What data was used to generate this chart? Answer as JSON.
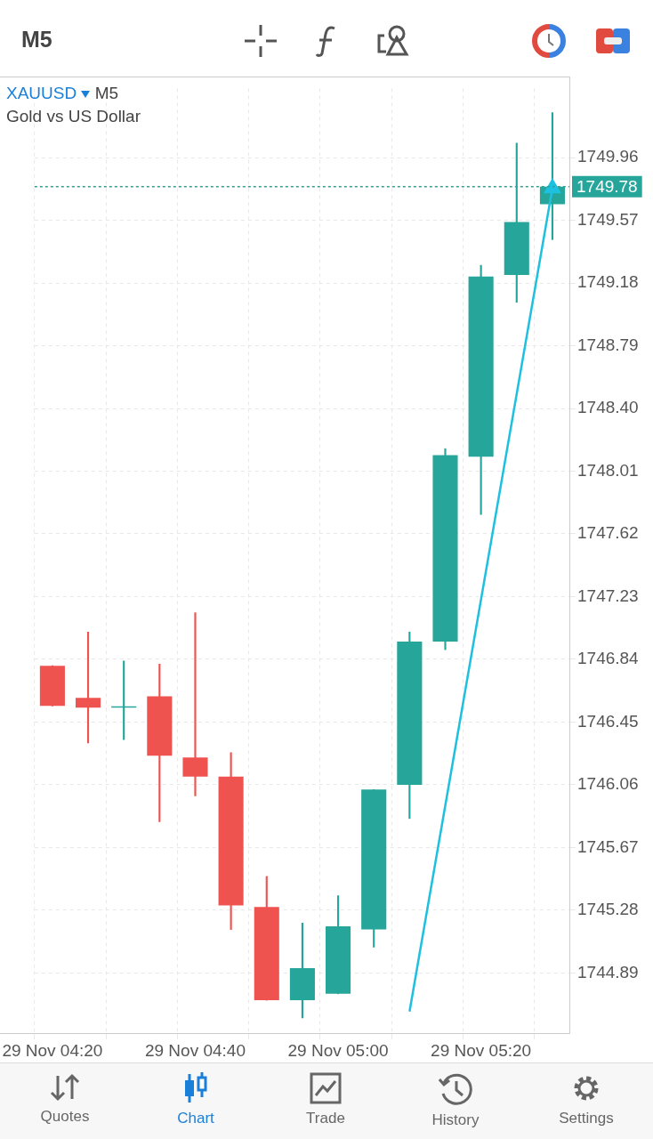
{
  "chart_data": {
    "type": "candlestick",
    "title": "XAUUSD",
    "subtitle": "Gold vs US Dollar",
    "categories": [
      "29 Nov 04:20",
      null,
      null,
      null,
      "29 Nov 04:40",
      null,
      null,
      null,
      "29 Nov 05:00",
      null,
      null,
      null,
      "29 Nov 05:20",
      null,
      null
    ],
    "ohlc": [
      [
        1746.8,
        1746.8,
        1746.55,
        1746.55
      ],
      [
        1746.6,
        1747.01,
        1746.32,
        1746.54
      ],
      [
        1746.54,
        1746.83,
        1746.34,
        1746.54
      ],
      [
        1746.61,
        1746.81,
        1745.83,
        1746.24
      ],
      [
        1746.23,
        1747.13,
        1745.99,
        1746.11
      ],
      [
        1746.11,
        1746.26,
        1745.16,
        1745.31
      ],
      [
        1745.3,
        1745.49,
        1744.72,
        1744.72
      ],
      [
        1744.72,
        1745.2,
        1744.61,
        1744.92
      ],
      [
        1744.76,
        1745.37,
        1744.76,
        1745.18
      ],
      [
        1745.16,
        1746.03,
        1745.05,
        1746.03
      ],
      [
        1746.06,
        1747.01,
        1745.85,
        1746.95
      ],
      [
        1746.95,
        1748.15,
        1746.9,
        1748.11
      ],
      [
        1748.1,
        1749.29,
        1747.74,
        1749.22
      ],
      [
        1749.23,
        1750.05,
        1749.06,
        1749.56
      ],
      [
        1749.67,
        1750.24,
        1749.45,
        1749.78
      ]
    ],
    "colors": [
      "#ef5350",
      "#ef5350",
      "#26a69a",
      "#ef5350",
      "#ef5350",
      "#ef5350",
      "#ef5350",
      "#26a69a",
      "#26a69a",
      "#26a69a",
      "#26a69a",
      "#26a69a",
      "#26a69a",
      "#26a69a",
      "#26a69a"
    ],
    "series": [
      {
        "type": "line",
        "color": "#1ec0e0",
        "marker": "triangle",
        "values": [
          null,
          null,
          null,
          null,
          null,
          null,
          null,
          null,
          null,
          null,
          1744.65,
          null,
          null,
          null,
          1749.77
        ]
      }
    ],
    "ylim": [
      1744.51,
      1750.39
    ],
    "yticks": [
      1744.89,
      1745.28,
      1745.67,
      1746.06,
      1746.45,
      1746.84,
      1747.23,
      1747.62,
      1748.01,
      {
        "value": 1748.4,
        "label": "1748.40"
      },
      1748.79,
      1749.18,
      1749.57,
      1749.96
    ],
    "grid": true,
    "ref_lines": [
      {
        "axis": "y",
        "value": 1749.78,
        "label": "1749.78",
        "color": "#26a69a",
        "line_style": "dotted"
      }
    ],
    "annotations": [
      "M5",
      "M5",
      "Quotes",
      "Chart",
      "Trade",
      "History",
      "Settings"
    ]
  }
}
